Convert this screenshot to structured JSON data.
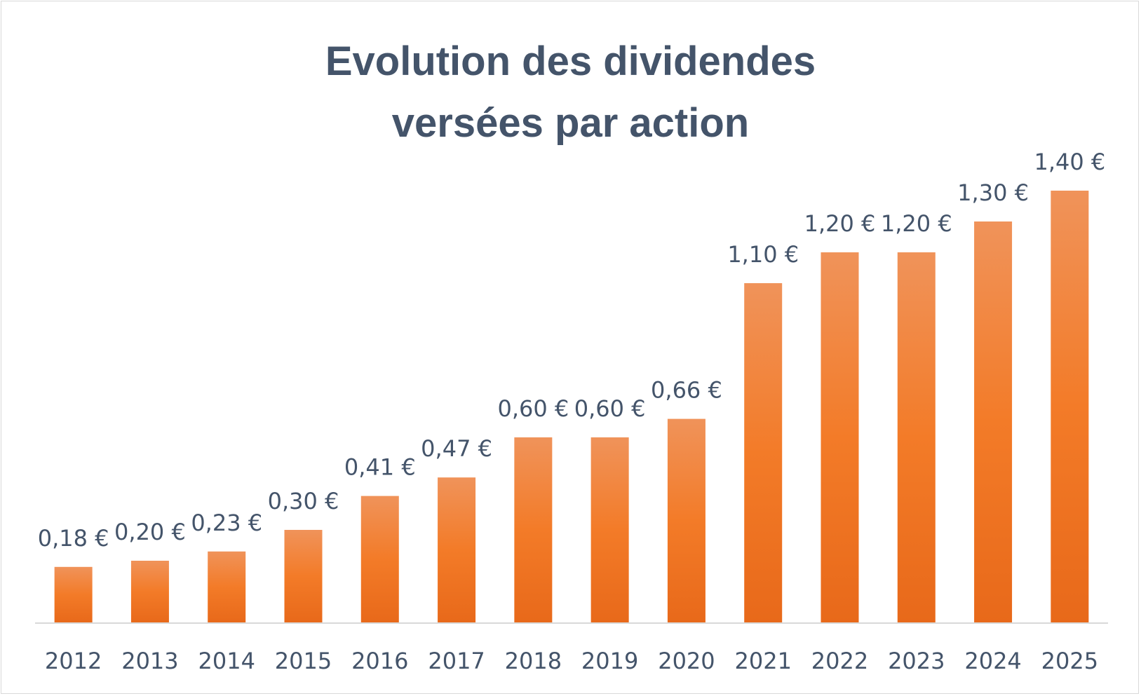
{
  "chart_data": {
    "type": "bar",
    "title_lines": [
      "Evolution des dividendes",
      "versées par action"
    ],
    "categories": [
      "2012",
      "2013",
      "2014",
      "2015",
      "2016",
      "2017",
      "2018",
      "2019",
      "2020",
      "2021",
      "2022",
      "2023",
      "2024",
      "2025"
    ],
    "values": [
      0.18,
      0.2,
      0.23,
      0.3,
      0.41,
      0.47,
      0.6,
      0.6,
      0.66,
      1.1,
      1.2,
      1.2,
      1.3,
      1.4
    ],
    "labels": [
      "0,18 €",
      "0,20 €",
      "0,23 €",
      "0,30 €",
      "0,41 €",
      "0,47 €",
      "0,60 €",
      "0,60 €",
      "0,66 €",
      "1,10 €",
      "1,20 €",
      "1,20 €",
      "1,30 €",
      "1,40 €"
    ],
    "ylim": [
      0,
      1.4
    ],
    "grid": false,
    "legend": "none",
    "bar_color": "#ed7d31"
  }
}
